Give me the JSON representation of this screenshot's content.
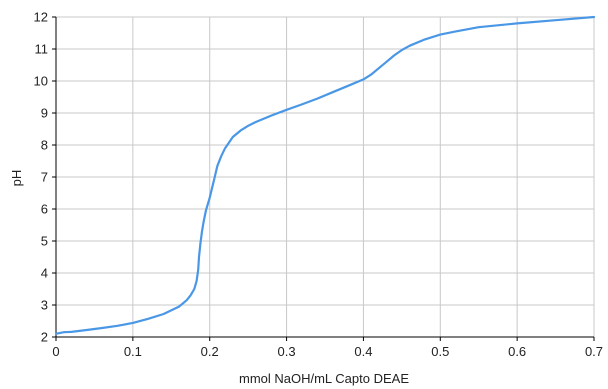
{
  "chart_data": {
    "type": "line",
    "title": "",
    "xlabel": "mmol NaOH/mL Capto DEAE",
    "ylabel": "pH",
    "xlim": [
      0,
      0.7
    ],
    "ylim": [
      2,
      12
    ],
    "grid": true,
    "legend": "none",
    "x_ticks": [
      0,
      0.1,
      0.2,
      0.3,
      0.4,
      0.5,
      0.6,
      0.7
    ],
    "x_tick_labels": [
      "0",
      "0.1",
      "0.2",
      "0.3",
      "0.4",
      "0.5",
      "0.6",
      "0.7"
    ],
    "y_ticks": [
      2,
      3,
      4,
      5,
      6,
      7,
      8,
      9,
      10,
      11,
      12
    ],
    "y_tick_labels": [
      "2",
      "3",
      "4",
      "5",
      "6",
      "7",
      "8",
      "9",
      "10",
      "11",
      "12"
    ],
    "colors": {
      "line": "#4a97e6",
      "grid": "#c8c8c8",
      "axis": "#000000"
    },
    "series": [
      {
        "x": [
          0,
          0.01,
          0.02,
          0.04,
          0.06,
          0.08,
          0.1,
          0.12,
          0.14,
          0.16,
          0.17,
          0.175,
          0.18,
          0.183,
          0.185,
          0.186,
          0.188,
          0.19,
          0.192,
          0.195,
          0.2,
          0.205,
          0.21,
          0.215,
          0.22,
          0.23,
          0.24,
          0.25,
          0.26,
          0.28,
          0.3,
          0.32,
          0.34,
          0.36,
          0.38,
          0.4,
          0.41,
          0.42,
          0.43,
          0.44,
          0.45,
          0.46,
          0.48,
          0.5,
          0.52,
          0.55,
          0.6,
          0.65,
          0.7
        ],
        "y": [
          2.1,
          2.15,
          2.16,
          2.22,
          2.28,
          2.35,
          2.44,
          2.57,
          2.72,
          2.95,
          3.15,
          3.3,
          3.5,
          3.75,
          4.1,
          4.5,
          4.95,
          5.3,
          5.6,
          5.95,
          6.35,
          6.85,
          7.35,
          7.65,
          7.9,
          8.25,
          8.45,
          8.6,
          8.72,
          8.92,
          9.1,
          9.27,
          9.45,
          9.65,
          9.85,
          10.05,
          10.2,
          10.4,
          10.6,
          10.8,
          10.97,
          11.1,
          11.3,
          11.45,
          11.55,
          11.68,
          11.8,
          11.9,
          12.0
        ]
      }
    ]
  }
}
